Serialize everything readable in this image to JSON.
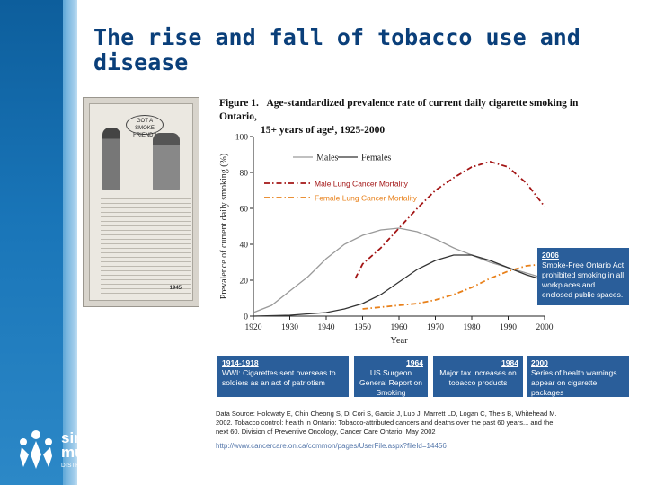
{
  "slide": {
    "title": "The rise and fall of tobacco use and disease"
  },
  "figure": {
    "label": "Figure 1.",
    "caption_line1": "Age-standardized prevalence rate of current daily cigarette smoking in Ontario,",
    "caption_line2": "15+ years of age¹, 1925-2000"
  },
  "poster": {
    "bubble_text": "GOT A SMOKE FRIEND?",
    "fund_name": "OVERSEAS LEAGUE TOBACCO FUND",
    "tag": "1945"
  },
  "chart_data": {
    "type": "line",
    "xlabel": "Year",
    "ylabel": "Prevalence of current daily smoking (%)",
    "xlim": [
      1920,
      2000
    ],
    "ylim": [
      0,
      100
    ],
    "x_ticks": [
      1920,
      1930,
      1940,
      1950,
      1960,
      1970,
      1980,
      1990,
      2000
    ],
    "y_ticks": [
      0,
      20,
      40,
      60,
      80,
      100
    ],
    "legend": {
      "placement": "top",
      "males": "Males",
      "females": "Females"
    },
    "series": [
      {
        "name": "Males",
        "color": "#9a9a9a",
        "style": "solid",
        "points": [
          [
            1920,
            2
          ],
          [
            1925,
            6
          ],
          [
            1930,
            14
          ],
          [
            1935,
            22
          ],
          [
            1940,
            32
          ],
          [
            1945,
            40
          ],
          [
            1950,
            45
          ],
          [
            1955,
            48
          ],
          [
            1960,
            49
          ],
          [
            1965,
            47
          ],
          [
            1970,
            43
          ],
          [
            1975,
            38
          ],
          [
            1980,
            34
          ],
          [
            1985,
            30
          ],
          [
            1990,
            27
          ],
          [
            1995,
            24
          ],
          [
            2000,
            21
          ]
        ]
      },
      {
        "name": "Females",
        "color": "#333333",
        "style": "solid",
        "points": [
          [
            1920,
            0
          ],
          [
            1930,
            0.5
          ],
          [
            1940,
            2
          ],
          [
            1945,
            4
          ],
          [
            1950,
            7
          ],
          [
            1955,
            12
          ],
          [
            1960,
            19
          ],
          [
            1965,
            26
          ],
          [
            1970,
            31
          ],
          [
            1975,
            34
          ],
          [
            1980,
            34
          ],
          [
            1985,
            31
          ],
          [
            1990,
            27
          ],
          [
            1995,
            23
          ],
          [
            2000,
            20
          ]
        ]
      },
      {
        "name": "Male Lung Cancer Mortality",
        "color": "#a31515",
        "style": "dash-dot",
        "points": [
          [
            1948,
            21
          ],
          [
            1950,
            29
          ],
          [
            1955,
            38
          ],
          [
            1960,
            49
          ],
          [
            1965,
            60
          ],
          [
            1970,
            70
          ],
          [
            1975,
            77
          ],
          [
            1980,
            83
          ],
          [
            1985,
            86
          ],
          [
            1990,
            83
          ],
          [
            1995,
            74
          ],
          [
            2000,
            61
          ]
        ]
      },
      {
        "name": "Female Lung Cancer Mortality",
        "color": "#e8801a",
        "style": "dash-dot",
        "points": [
          [
            1950,
            4
          ],
          [
            1955,
            5
          ],
          [
            1960,
            6
          ],
          [
            1965,
            7
          ],
          [
            1970,
            9
          ],
          [
            1975,
            12
          ],
          [
            1980,
            16
          ],
          [
            1985,
            21
          ],
          [
            1990,
            25
          ],
          [
            1995,
            28
          ],
          [
            2000,
            29
          ]
        ]
      }
    ]
  },
  "callouts": [
    {
      "year": "2006",
      "text": "Smoke-Free Ontario Act prohibited smoking in all workplaces and enclosed public spaces."
    },
    {
      "year": "1914-1918",
      "text": "WWI: Cigarettes sent overseas to soldiers as an act of patriotism"
    },
    {
      "year": "1964",
      "text": "US Surgeon General Report on Smoking"
    },
    {
      "year": "1984",
      "text": "Major tax increases on tobacco products"
    },
    {
      "year": "2000",
      "text": "Series of health warnings appear on cigarette packages"
    }
  ],
  "source": {
    "text": "Data Source: Holowaty E, Chin Cheong S, Di Cori S, Garcia J, Luo J, Marrett LD, Logan C, Theis B, Whitehead M. 2002. Tobacco control: health in Ontario: Tobacco-attributed cancers and deaths over the past 60 years... and the next 60. Division of Preventive Oncology, Cancer Care Ontario: May 2002",
    "url": "http://www.cancercare.on.ca/common/pages/UserFile.aspx?fileId=14456"
  },
  "logo": {
    "line1": "simcoe",
    "line2": "muskoka",
    "line3": "DISTRICT HEALTH UNIT"
  },
  "colors": {
    "title": "#0a3f7a",
    "callout_bg": "#2a5e9a",
    "sidebar": "#1975b8"
  }
}
